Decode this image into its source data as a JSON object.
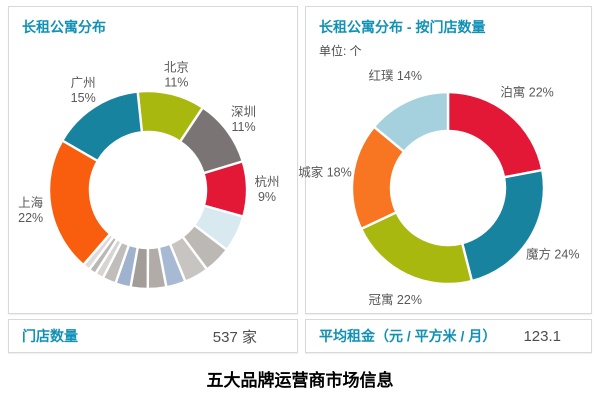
{
  "page": {
    "bottom_title": "五大品牌运营商市场信息"
  },
  "panels": [
    {
      "title": "长租公寓分布",
      "subtitle": "",
      "stat_label": "门店数量",
      "stat_value": "537 家"
    },
    {
      "title": "长租公寓分布 - 按门店数量",
      "subtitle": "单位: 个",
      "stat_label": "平均租金（元 / 平方米 / 月）",
      "stat_value": "123.1"
    }
  ],
  "colors": {
    "accent_teal": "#1191B5",
    "label_gray": "#595959",
    "value_gray": "#4D4D4D",
    "panel_border": "#D9D9D9"
  },
  "chart_data": [
    {
      "type": "pie",
      "donut": true,
      "title": "长租公寓分布",
      "legend_position": "outside-labels",
      "slices": [
        {
          "label": "北京",
          "value": 11,
          "color": "#A8B80E"
        },
        {
          "label": "深圳",
          "value": 11,
          "color": "#7A7475"
        },
        {
          "label": "杭州",
          "value": 9,
          "color": "#E31837"
        },
        {
          "label": "",
          "value": 6,
          "color": "#D8EAF0"
        },
        {
          "label": "",
          "value": 4.5,
          "color": "#BCB8B4"
        },
        {
          "label": "",
          "value": 4,
          "color": "#C7C4C1"
        },
        {
          "label": "",
          "value": 3.2,
          "color": "#A8BAD3"
        },
        {
          "label": "",
          "value": 3,
          "color": "#B2ACA8"
        },
        {
          "label": "",
          "value": 2.8,
          "color": "#A39D99"
        },
        {
          "label": "",
          "value": 2.5,
          "color": "#9FB2CE"
        },
        {
          "label": "",
          "value": 2.2,
          "color": "#C0BDBA"
        },
        {
          "label": "",
          "value": 1.4,
          "color": "#D7D5D3"
        },
        {
          "label": "",
          "value": 1.2,
          "color": "#BAB7B4"
        },
        {
          "label": "",
          "value": 1.2,
          "color": "#DDDCDB"
        },
        {
          "label": "上海",
          "value": 22,
          "color": "#F95D0E"
        },
        {
          "label": "广州",
          "value": 15,
          "color": "#17839F"
        }
      ]
    },
    {
      "type": "pie",
      "donut": true,
      "title": "长租公寓分布 - 按门店数量",
      "unit": "个",
      "legend_position": "outside-labels",
      "slices": [
        {
          "label": "泊寓",
          "value": 22,
          "color": "#E31837"
        },
        {
          "label": "魔方",
          "value": 24,
          "color": "#17839F"
        },
        {
          "label": "冠寓",
          "value": 22,
          "color": "#A8B80E"
        },
        {
          "label": "城家",
          "value": 18,
          "color": "#F87521"
        },
        {
          "label": "红璞",
          "value": 14,
          "color": "#A5D1DE"
        }
      ]
    }
  ]
}
